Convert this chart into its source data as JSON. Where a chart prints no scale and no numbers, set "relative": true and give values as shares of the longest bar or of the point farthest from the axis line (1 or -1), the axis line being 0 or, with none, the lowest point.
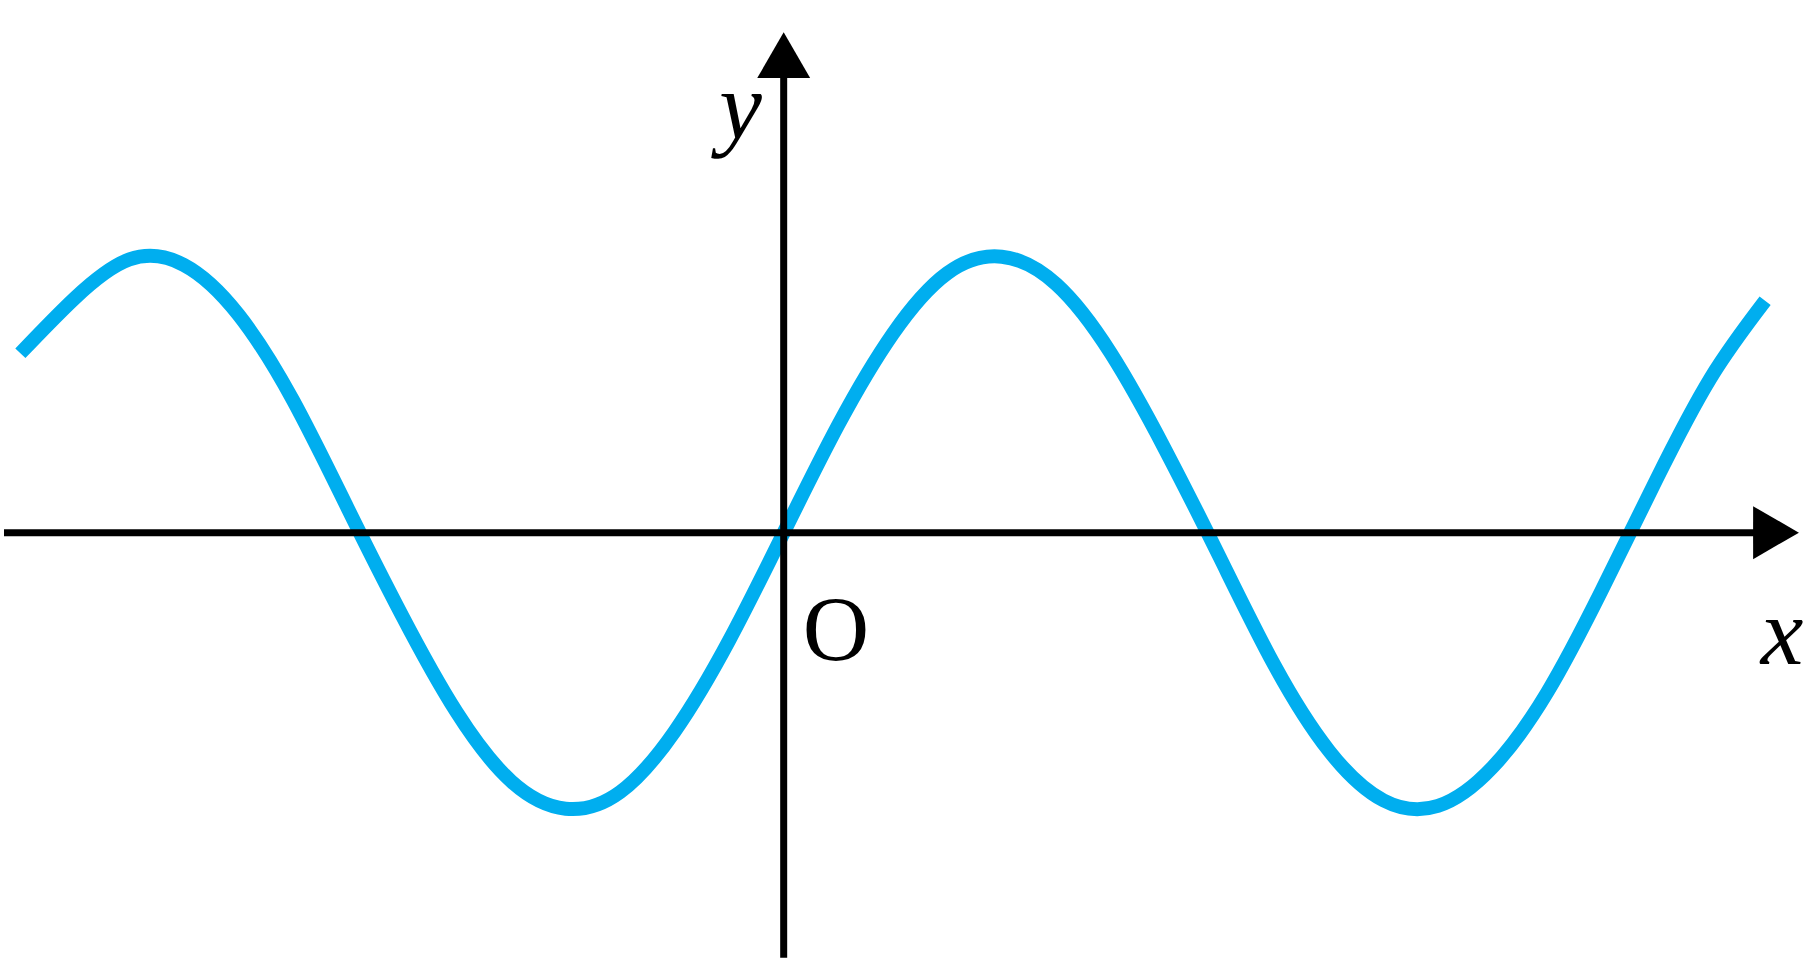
{
  "chart_data": {
    "type": "line",
    "relative": true,
    "xlabel": "x",
    "ylabel": "y",
    "annotations": [
      "O"
    ],
    "categories": [
      null,
      null,
      null,
      null,
      null,
      null,
      null,
      null,
      null,
      null,
      null,
      null,
      null,
      null,
      null,
      null,
      null,
      null,
      null,
      null,
      null,
      null,
      null,
      null,
      null,
      null,
      null,
      null,
      null,
      null,
      null,
      null,
      null
    ],
    "series": [
      {
        "color": "#00aeef",
        "values": [
          0.65,
          0.85,
          0.99,
          0.97,
          0.79,
          0.48,
          0.09,
          -0.3,
          -0.65,
          -0.9,
          -1,
          -0.94,
          -0.72,
          -0.39,
          0,
          0.39,
          0.72,
          0.94,
          1,
          0.9,
          0.65,
          0.3,
          -0.09,
          -0.48,
          -0.79,
          -0.97,
          -0.99,
          -0.85,
          -0.58,
          -0.21,
          0.19,
          0.56,
          0.84
        ]
      }
    ],
    "legend": false,
    "marker": "none",
    "line_style": "solid"
  }
}
